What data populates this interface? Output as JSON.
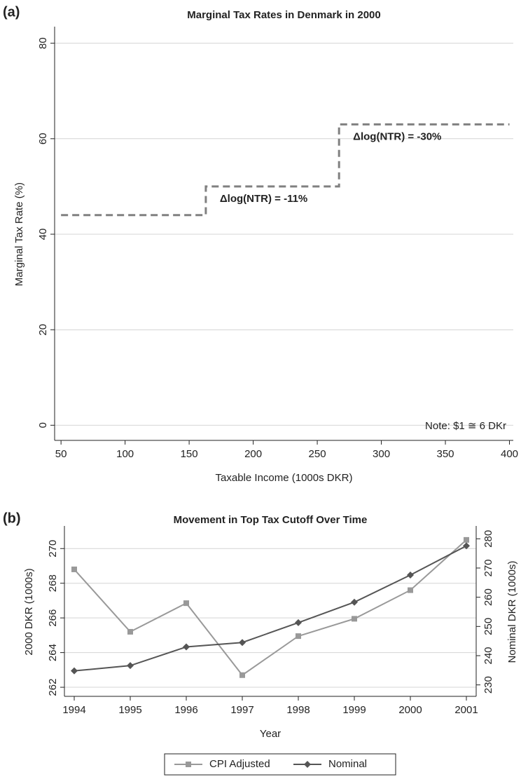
{
  "chart_data": [
    {
      "type": "line",
      "panel_label": "(a)",
      "title": "Marginal Tax Rates in Denmark in 2000",
      "x_label": "Taxable Income (1000s DKR)",
      "y_label": "Marginal Tax Rate (%)",
      "x": [
        50,
        163,
        163,
        267,
        267,
        400
      ],
      "values": [
        44,
        44,
        50,
        50,
        63,
        63
      ],
      "color": "#808080",
      "dashed": true,
      "xlim": [
        45,
        403
      ],
      "xticks": [
        50,
        100,
        150,
        200,
        250,
        300,
        350,
        400
      ],
      "ylim": [
        -2,
        82
      ],
      "yticks": [
        0,
        20,
        40,
        60,
        80
      ],
      "grid": true,
      "annotations": [
        "Δlog(NTR) = -11%",
        "Δlog(NTR) = -30%",
        "Note: $1 ≅ 6 DKr"
      ]
    },
    {
      "type": "line",
      "panel_label": "(b)",
      "title": "Movement in Top Tax Cutoff Over Time",
      "x_label": "Year",
      "y_label": "2000 DKR (1000s)",
      "y2_label": "Nominal DKR (1000s)",
      "categories": [
        "1994",
        "1995",
        "1996",
        "1997",
        "1998",
        "1999",
        "2000",
        "2001"
      ],
      "series": [
        {
          "name": "CPI Adjusted",
          "color": "#999999",
          "marker": "square",
          "values": [
            268.8,
            265.2,
            266.85,
            262.7,
            264.95,
            265.95,
            267.6,
            270.5
          ]
        },
        {
          "name": "Nominal",
          "color": "#555555",
          "marker": "diamond",
          "axis": "y2",
          "values": [
            234.8,
            236.6,
            243,
            244.5,
            251.3,
            258.3,
            267.6,
            277.6
          ]
        }
      ],
      "ylim": [
        261.8,
        270.9
      ],
      "yticks": [
        262,
        264,
        266,
        268,
        270
      ],
      "y2lim": [
        228,
        282
      ],
      "y2ticks": [
        230,
        240,
        250,
        260,
        270,
        280
      ],
      "grid": true
    }
  ]
}
